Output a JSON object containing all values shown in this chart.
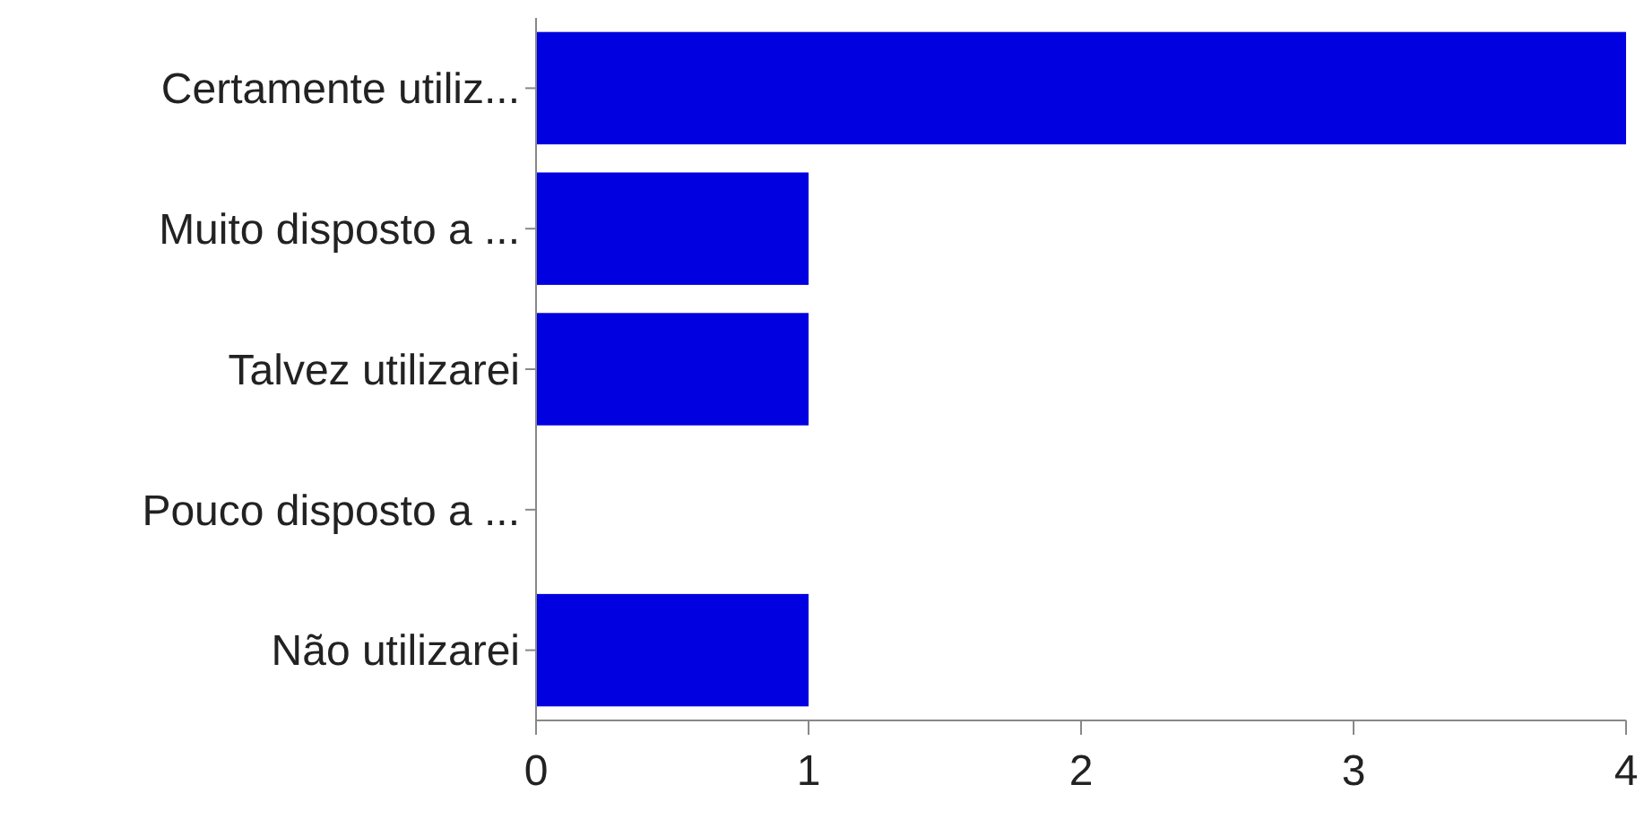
{
  "chart_data": {
    "type": "bar",
    "orientation": "horizontal",
    "categories": [
      "Certamente utiliz...",
      "Muito disposto a ...",
      "Talvez utilizarei",
      "Pouco disposto a ...",
      "Não utilizarei"
    ],
    "values": [
      4,
      1,
      1,
      0,
      1
    ],
    "color": "#0000e0",
    "xlim": [
      0,
      4
    ],
    "xticks": [
      0,
      1,
      2,
      3,
      4
    ],
    "grid": false
  }
}
